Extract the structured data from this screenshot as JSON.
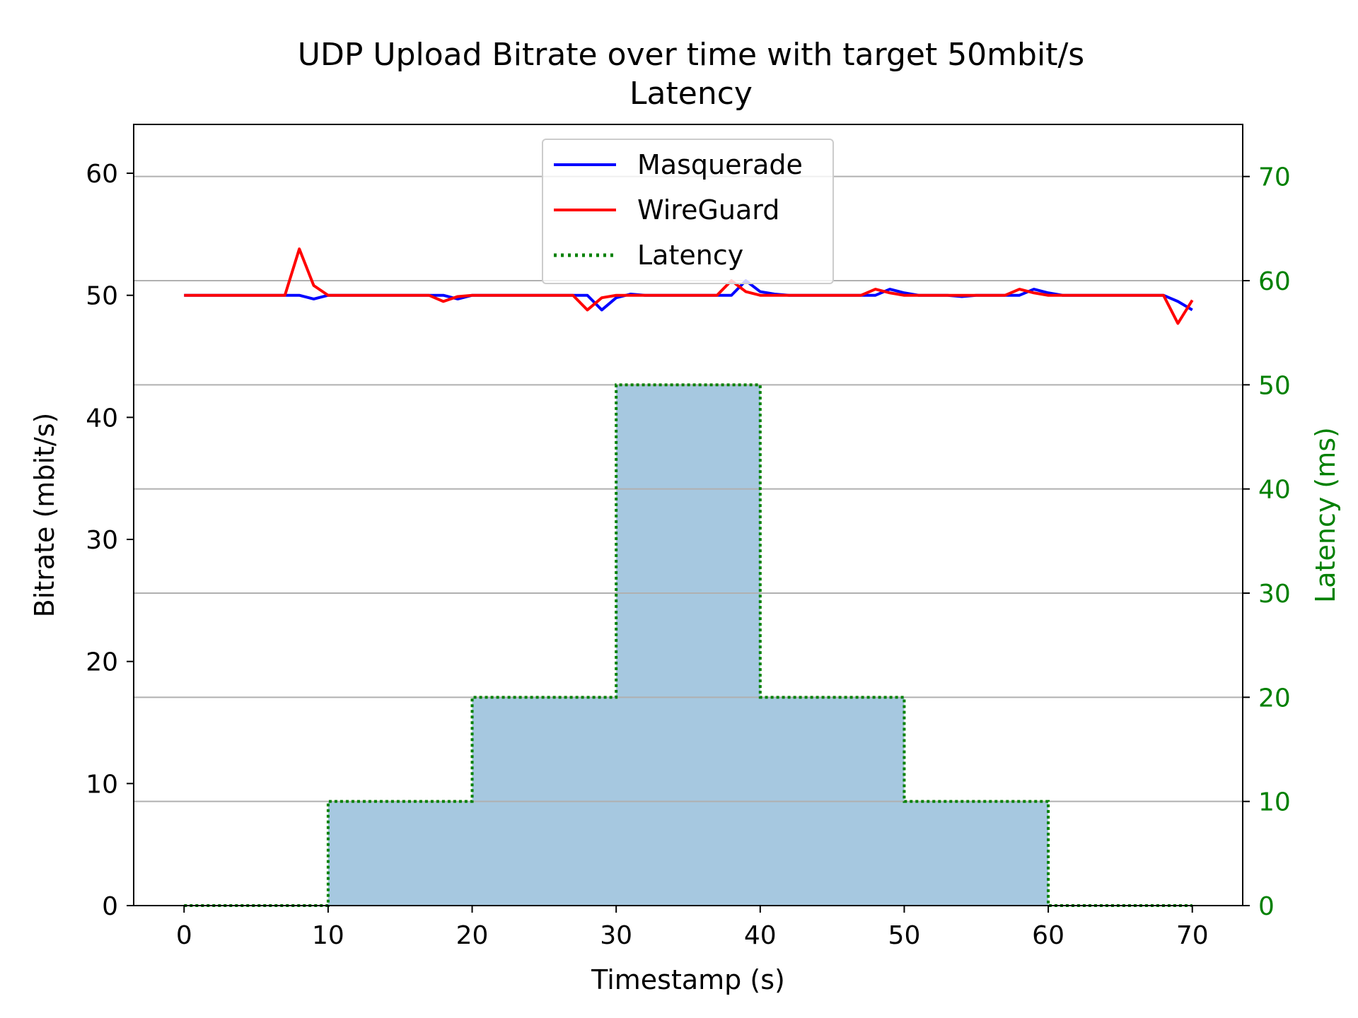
{
  "chart_data": {
    "type": "line",
    "title": "UDP Upload Bitrate over time with target 50mbit/s",
    "subtitle": "Latency",
    "xlabel": "Timestamp (s)",
    "ylabel": "Bitrate (mbit/s)",
    "y2label": "Latency (ms)",
    "xlim": [
      -3.5,
      73.5
    ],
    "ylim": [
      0,
      64
    ],
    "y2lim": [
      0,
      75
    ],
    "xticks": [
      "0",
      "10",
      "20",
      "30",
      "40",
      "50",
      "60",
      "70"
    ],
    "yticks": [
      "0",
      "10",
      "20",
      "30",
      "40",
      "50",
      "60"
    ],
    "y2ticks": [
      "0",
      "10",
      "20",
      "30",
      "40",
      "50",
      "60",
      "70"
    ],
    "grid": "horizontal, on secondary axis",
    "legend_position": "upper center",
    "colors": {
      "masquerade": "#0000ff",
      "wireguard": "#ff0000",
      "latency": "#008000",
      "latency_fill": "#a6c8e0",
      "grid": "#b0b0b0",
      "axis": "#000000",
      "y2_text": "#008000"
    },
    "series": [
      {
        "name": "Masquerade",
        "axis": "left",
        "x": [
          0,
          1,
          2,
          3,
          4,
          5,
          6,
          7,
          8,
          9,
          10,
          11,
          12,
          13,
          14,
          15,
          16,
          17,
          18,
          19,
          20,
          21,
          22,
          23,
          24,
          25,
          26,
          27,
          28,
          29,
          30,
          31,
          32,
          33,
          34,
          35,
          36,
          37,
          38,
          39,
          40,
          41,
          42,
          43,
          44,
          45,
          46,
          47,
          48,
          49,
          50,
          51,
          52,
          53,
          54,
          55,
          56,
          57,
          58,
          59,
          60,
          61,
          62,
          63,
          64,
          65,
          66,
          67,
          68,
          69,
          70
        ],
        "values": [
          50,
          50,
          50,
          50,
          50,
          50,
          50,
          50,
          50,
          49.7,
          50,
          50,
          50,
          50,
          50,
          50,
          50,
          50,
          50,
          49.7,
          50,
          50,
          50,
          50,
          50,
          50,
          50,
          50,
          50,
          48.8,
          49.8,
          50.1,
          50,
          50,
          50,
          50,
          50,
          50,
          50,
          51.2,
          50.3,
          50.1,
          50,
          50,
          50,
          50,
          50,
          50,
          50,
          50.5,
          50.2,
          50,
          50,
          50,
          49.9,
          50,
          50,
          50,
          50,
          50.5,
          50.2,
          50,
          50,
          50,
          50,
          50,
          50,
          50,
          50,
          49.5,
          48.8
        ]
      },
      {
        "name": "WireGuard",
        "axis": "left",
        "x": [
          0,
          1,
          2,
          3,
          4,
          5,
          6,
          7,
          8,
          9,
          10,
          11,
          12,
          13,
          14,
          15,
          16,
          17,
          18,
          19,
          20,
          21,
          22,
          23,
          24,
          25,
          26,
          27,
          28,
          29,
          30,
          31,
          32,
          33,
          34,
          35,
          36,
          37,
          38,
          39,
          40,
          41,
          42,
          43,
          44,
          45,
          46,
          47,
          48,
          49,
          50,
          51,
          52,
          53,
          54,
          55,
          56,
          57,
          58,
          59,
          60,
          61,
          62,
          63,
          64,
          65,
          66,
          67,
          68,
          69,
          70
        ],
        "values": [
          50,
          50,
          50,
          50,
          50,
          50,
          50,
          50,
          53.8,
          50.8,
          50,
          50,
          50,
          50,
          50,
          50,
          50,
          50,
          49.5,
          49.9,
          50,
          50,
          50,
          50,
          50,
          50,
          50,
          50,
          48.8,
          49.8,
          50,
          50,
          50,
          50,
          50,
          50,
          50,
          50,
          51.2,
          50.3,
          50,
          50,
          50,
          50,
          50,
          50,
          50,
          50,
          50.5,
          50.2,
          50,
          50,
          50,
          50,
          50,
          50,
          50,
          50,
          50.5,
          50.2,
          50,
          50,
          50,
          50,
          50,
          50,
          50,
          50,
          50,
          47.7,
          49.6
        ]
      },
      {
        "name": "Latency",
        "axis": "right",
        "style": "dotted step, filled",
        "x": [
          0,
          10,
          20,
          30,
          40,
          50,
          60,
          70
        ],
        "values": [
          0,
          10,
          20,
          50,
          20,
          10,
          0,
          0
        ]
      }
    ]
  }
}
